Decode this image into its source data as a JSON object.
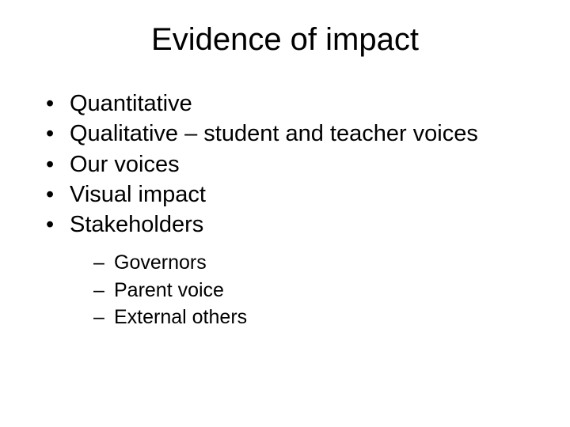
{
  "slide": {
    "title": "Evidence of impact",
    "title_fontsize": 40,
    "body_fontsize_l1": 29,
    "body_fontsize_l2": 25,
    "text_color": "#000000",
    "background_color": "#ffffff",
    "bullets": [
      {
        "text": "Quantitative"
      },
      {
        "text": "Qualitative – student and teacher voices"
      },
      {
        "text": "Our voices"
      },
      {
        "text": "Visual impact"
      },
      {
        "text": "Stakeholders"
      }
    ],
    "sub_bullets": [
      {
        "text": "Governors"
      },
      {
        "text": "Parent voice"
      },
      {
        "text": "External others"
      }
    ]
  }
}
